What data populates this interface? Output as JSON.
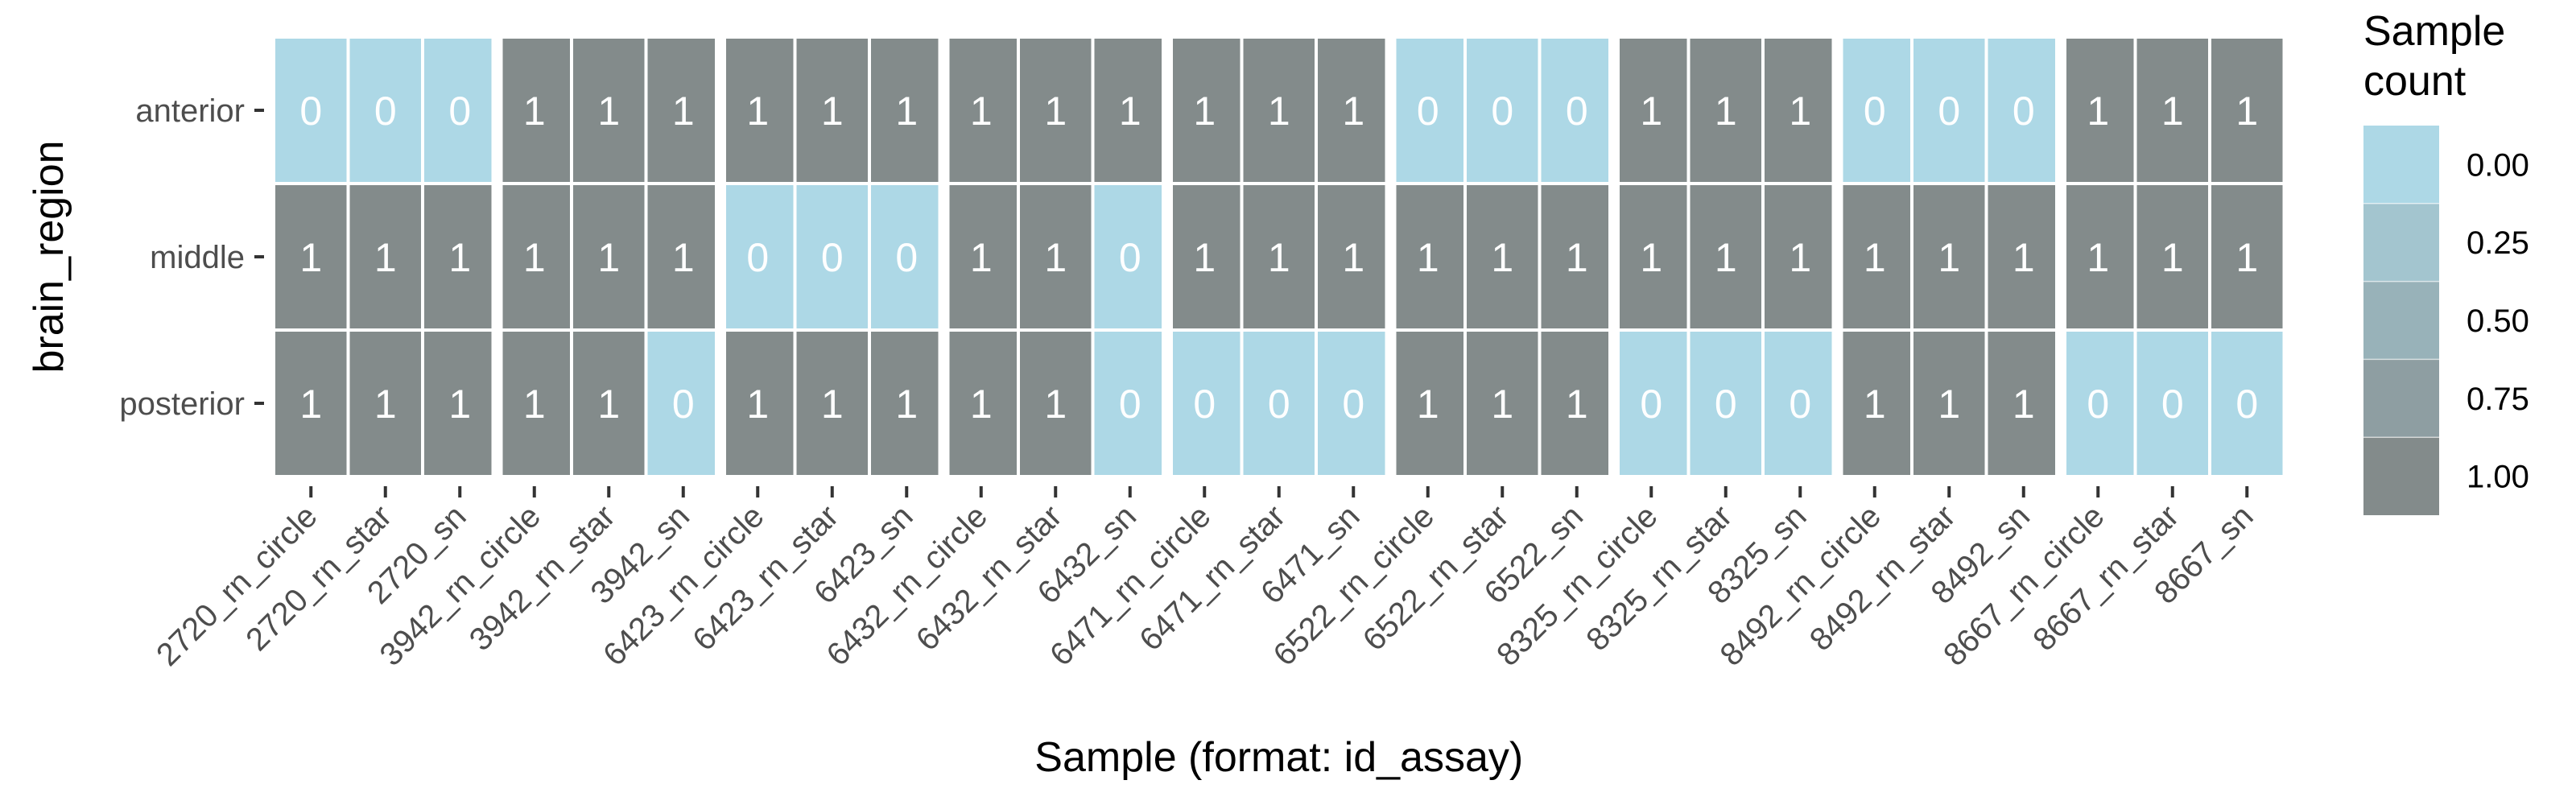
{
  "chart_data": {
    "type": "heatmap",
    "xlabel": "Sample (format: id_assay)",
    "ylabel": "brain_region",
    "x": [
      "2720_rn_circle",
      "2720_rn_star",
      "2720_sn",
      "3942_rn_circle",
      "3942_rn_star",
      "3942_sn",
      "6423_rn_circle",
      "6423_rn_star",
      "6423_sn",
      "6432_rn_circle",
      "6432_rn_star",
      "6432_sn",
      "6471_rn_circle",
      "6471_rn_star",
      "6471_sn",
      "6522_rn_circle",
      "6522_rn_star",
      "6522_sn",
      "8325_rn_circle",
      "8325_rn_star",
      "8325_sn",
      "8492_rn_circle",
      "8492_rn_star",
      "8492_sn",
      "8667_rn_circle",
      "8667_rn_star",
      "8667_sn"
    ],
    "y": [
      "anterior",
      "middle",
      "posterior"
    ],
    "values": [
      [
        0,
        0,
        0,
        1,
        1,
        1,
        1,
        1,
        1,
        1,
        1,
        1,
        1,
        1,
        1,
        0,
        0,
        0,
        1,
        1,
        1,
        0,
        0,
        0,
        1,
        1,
        1
      ],
      [
        1,
        1,
        1,
        1,
        1,
        1,
        0,
        0,
        0,
        1,
        1,
        0,
        1,
        1,
        1,
        1,
        1,
        1,
        1,
        1,
        1,
        1,
        1,
        1,
        1,
        1,
        1
      ],
      [
        1,
        1,
        1,
        1,
        1,
        0,
        1,
        1,
        1,
        1,
        1,
        0,
        0,
        0,
        0,
        1,
        1,
        1,
        0,
        0,
        0,
        1,
        1,
        1,
        0,
        0,
        0
      ]
    ],
    "groups": [
      "2720",
      "3942",
      "6423",
      "6432",
      "6471",
      "6522",
      "8325",
      "8492",
      "8667"
    ],
    "legend": {
      "title": [
        "Sample",
        "count"
      ],
      "labels": [
        "0.00",
        "0.25",
        "0.50",
        "0.75",
        "1.00"
      ],
      "position": "right"
    },
    "colors": {
      "low": "#add8e6",
      "high": "#838b8b"
    },
    "grid": false
  }
}
